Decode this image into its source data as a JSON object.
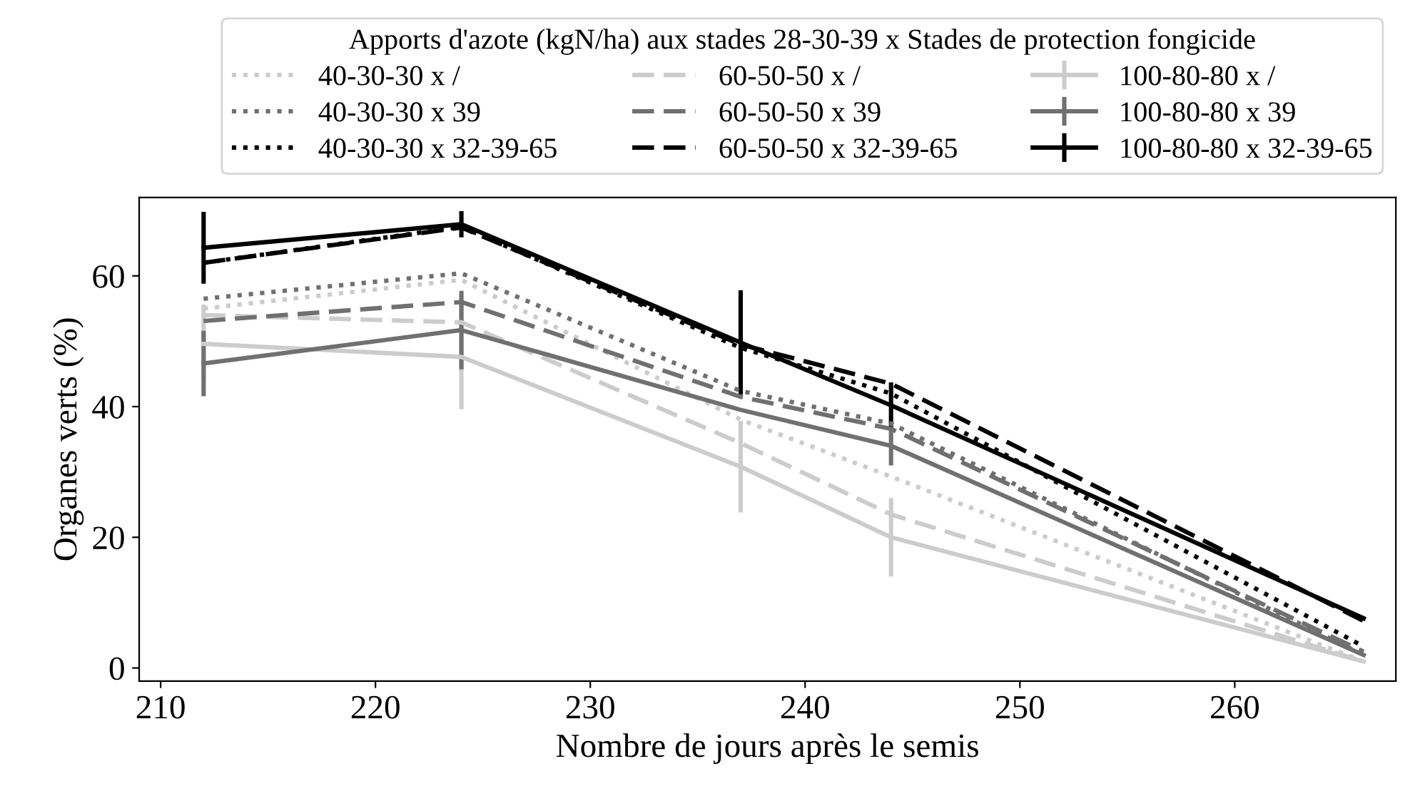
{
  "chart_data": {
    "type": "line",
    "xlabel": "Nombre de jours après le semis",
    "ylabel": "Organes verts (%)",
    "x": [
      212,
      224,
      237,
      244,
      266
    ],
    "xlim": [
      209,
      267.5
    ],
    "xticks": [
      210,
      220,
      230,
      240,
      250,
      260
    ],
    "ylim": [
      -2,
      72
    ],
    "yticks": [
      0,
      20,
      40,
      60
    ],
    "grid": false,
    "legend": "top",
    "legend_title": "Apports d'azote (kgN/ha) aux stades 28-30-39 x Stades de protection fongicide",
    "series": [
      {
        "name": "40-30-30 x /",
        "color": "#cccccc",
        "line_style": "dotted",
        "values": [
          55,
          59.4,
          38,
          29.3,
          1
        ]
      },
      {
        "name": "40-30-30 x 39",
        "color": "#707070",
        "line_style": "dotted",
        "values": [
          56.5,
          60.4,
          42.4,
          37.4,
          2
        ]
      },
      {
        "name": "40-30-30 x 32-39-65",
        "color": "#000000",
        "line_style": "dotted",
        "values": [
          62,
          67.5,
          49,
          42,
          3.3
        ]
      },
      {
        "name": "60-50-50 x /",
        "color": "#cccccc",
        "line_style": "dashed",
        "values": [
          54,
          52.9,
          34.4,
          23.5,
          1
        ]
      },
      {
        "name": "60-50-50 x 39",
        "color": "#707070",
        "line_style": "dashed",
        "values": [
          53.1,
          56,
          41.5,
          36.6,
          2.5
        ]
      },
      {
        "name": "60-50-50 x 32-39-65",
        "color": "#000000",
        "line_style": "dashed",
        "values": [
          62,
          67.4,
          49.5,
          43.5,
          7.2
        ]
      },
      {
        "name": "100-80-80 x /",
        "color": "#cccccc",
        "line_style": "solid",
        "values": [
          49.6,
          47.6,
          30.8,
          20,
          1
        ],
        "errors": [
          6,
          8,
          7,
          6,
          null
        ]
      },
      {
        "name": "100-80-80 x 39",
        "color": "#707070",
        "line_style": "solid",
        "values": [
          46.6,
          51.7,
          39.5,
          34,
          2
        ],
        "errors": [
          5,
          6,
          null,
          3,
          null
        ]
      },
      {
        "name": "100-80-80 x 32-39-65",
        "color": "#000000",
        "line_style": "solid",
        "values": [
          64.3,
          67.9,
          49.8,
          40.2,
          7.6
        ],
        "errors": [
          5.5,
          2,
          8,
          3.5,
          null
        ]
      }
    ]
  }
}
